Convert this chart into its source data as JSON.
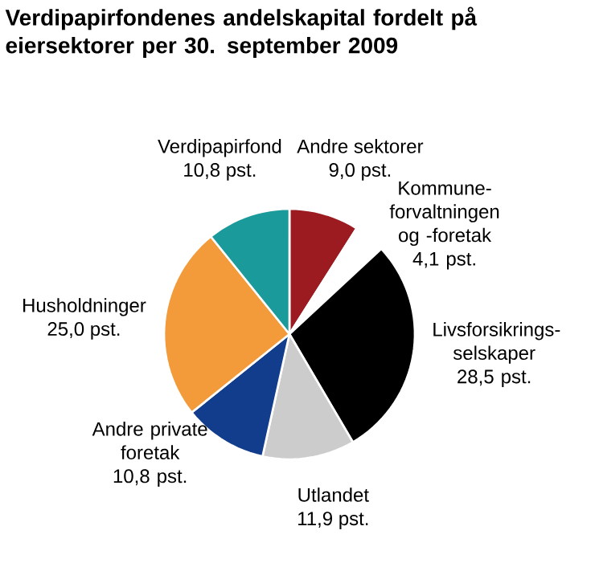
{
  "chart_data": {
    "type": "pie",
    "title": "Verdipapirfondenes andelskapital fordelt på eiersektorer per 30. september 2009",
    "categories": [
      "Andre sektorer",
      "Kommune-forvaltningen og -foretak",
      "Livsforsikrings-selskaper",
      "Utlandet",
      "Andre private foretak",
      "Husholdninger",
      "Verdipapirfond"
    ],
    "values": [
      9.0,
      4.1,
      28.5,
      11.9,
      10.8,
      25.0,
      10.8
    ],
    "value_labels": [
      "9,0 pst.",
      "4,1 pst.",
      "28,5 pst.",
      "11,9 pst.",
      "10,8 pst.",
      "25,0 pst.",
      "10,8 pst."
    ],
    "colors": [
      "#9b1b20",
      "#ffffff",
      "#000000",
      "#cccccc",
      "#123c8c",
      "#f39b3a",
      "#1a9a9a"
    ]
  }
}
